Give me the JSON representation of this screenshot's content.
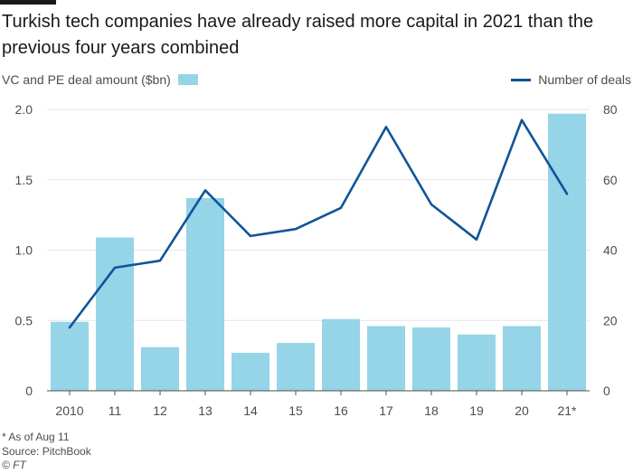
{
  "title": "Turkish tech companies have already raised more capital in 2021 than the previous four years combined",
  "legend": {
    "bars_label": "VC and PE deal amount ($bn)",
    "line_label": "Number of deals"
  },
  "footer": {
    "note": "* As of Aug 11",
    "source": "Source: PitchBook",
    "credit": "© FT"
  },
  "colors": {
    "bar": "#96d4e8",
    "line": "#0f5499",
    "grid": "#e6e6e6",
    "text": "#4d4d4d"
  },
  "chart_data": {
    "type": "bar",
    "categories": [
      "2010",
      "11",
      "12",
      "13",
      "14",
      "15",
      "16",
      "17",
      "18",
      "19",
      "20",
      "21*"
    ],
    "series": [
      {
        "name": "VC and PE deal amount ($bn)",
        "type": "bar",
        "axis": "left",
        "values": [
          0.49,
          1.09,
          0.31,
          1.37,
          0.27,
          0.34,
          0.51,
          0.46,
          0.45,
          0.4,
          0.46,
          1.97
        ]
      },
      {
        "name": "Number of deals",
        "type": "line",
        "axis": "right",
        "values": [
          18,
          35,
          37,
          57,
          44,
          46,
          52,
          75,
          53,
          43,
          77,
          56
        ]
      }
    ],
    "y_left": {
      "lim": [
        0,
        2.0
      ],
      "ticks": [
        "0",
        "0.5",
        "1.0",
        "1.5",
        "2.0"
      ],
      "tick_values": [
        0,
        0.5,
        1.0,
        1.5,
        2.0
      ]
    },
    "y_right": {
      "lim": [
        0,
        80
      ],
      "ticks": [
        "0",
        "20",
        "40",
        "60",
        "80"
      ],
      "tick_values": [
        0,
        20,
        40,
        60,
        80
      ]
    },
    "grid": true
  }
}
